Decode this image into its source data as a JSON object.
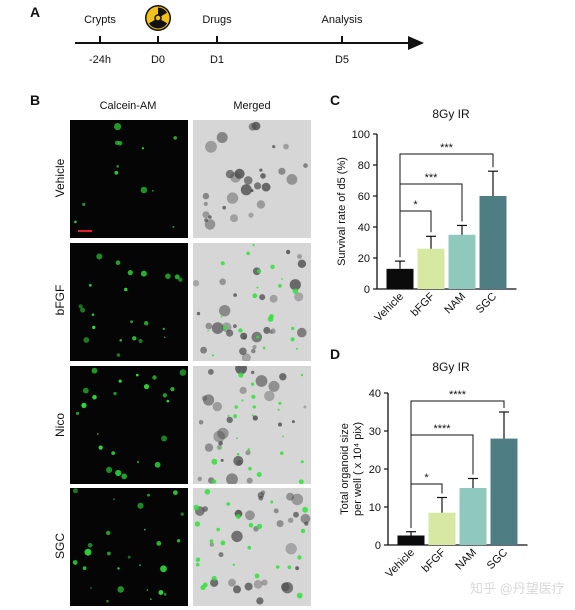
{
  "panels": {
    "a": "A",
    "b": "B",
    "c": "C",
    "d": "D"
  },
  "timeline": {
    "events": [
      {
        "top": "Crypts",
        "bottom": "-24h"
      },
      {
        "top": "",
        "bottom": "D0",
        "icon": "radiation-icon"
      },
      {
        "top": "Drugs",
        "bottom": "D1"
      },
      {
        "top": "Analysis",
        "bottom": "D5"
      }
    ]
  },
  "microscopy": {
    "columns": [
      "Calcein-AM",
      "Merged"
    ],
    "rows": [
      "Vehicle",
      "bFGF",
      "Nico",
      "SGC"
    ]
  },
  "colors": {
    "vehicle": "#0b0b0b",
    "bfgf": "#d7e8a2",
    "nam": "#8fc9be",
    "sgc": "#4f7d84",
    "fluorescence": "#2fe03a",
    "scalebar": "#e0202a"
  },
  "chart_data": [
    {
      "type": "bar",
      "title": "8Gy IR",
      "categories": [
        "Vehicle",
        "bFGF",
        "NAM",
        "SGC"
      ],
      "values": [
        13,
        26,
        35,
        60
      ],
      "errors": [
        5,
        8,
        6,
        16
      ],
      "ylabel": "Survival rate of d5 (%)",
      "ylim": [
        0,
        100
      ],
      "yticks": [
        0,
        20,
        40,
        60,
        80,
        100
      ],
      "significance": [
        {
          "from": "Vehicle",
          "to": "bFGF",
          "label": "*"
        },
        {
          "from": "Vehicle",
          "to": "NAM",
          "label": "***"
        },
        {
          "from": "Vehicle",
          "to": "SGC",
          "label": "***"
        }
      ]
    },
    {
      "type": "bar",
      "title": "8Gy IR",
      "categories": [
        "Vehicle",
        "bFGF",
        "NAM",
        "SGC"
      ],
      "values": [
        2.5,
        8.5,
        15,
        28
      ],
      "errors": [
        1,
        4,
        2.5,
        7
      ],
      "ylabel_line1": "Total organoid size",
      "ylabel_line2": "per well ( x 10⁴ pix)",
      "ylim": [
        0,
        40
      ],
      "yticks": [
        0,
        10,
        20,
        30,
        40
      ],
      "significance": [
        {
          "from": "Vehicle",
          "to": "bFGF",
          "label": "*"
        },
        {
          "from": "Vehicle",
          "to": "NAM",
          "label": "****"
        },
        {
          "from": "Vehicle",
          "to": "SGC",
          "label": "****"
        }
      ]
    }
  ],
  "watermark": "知乎 @丹望医疗"
}
